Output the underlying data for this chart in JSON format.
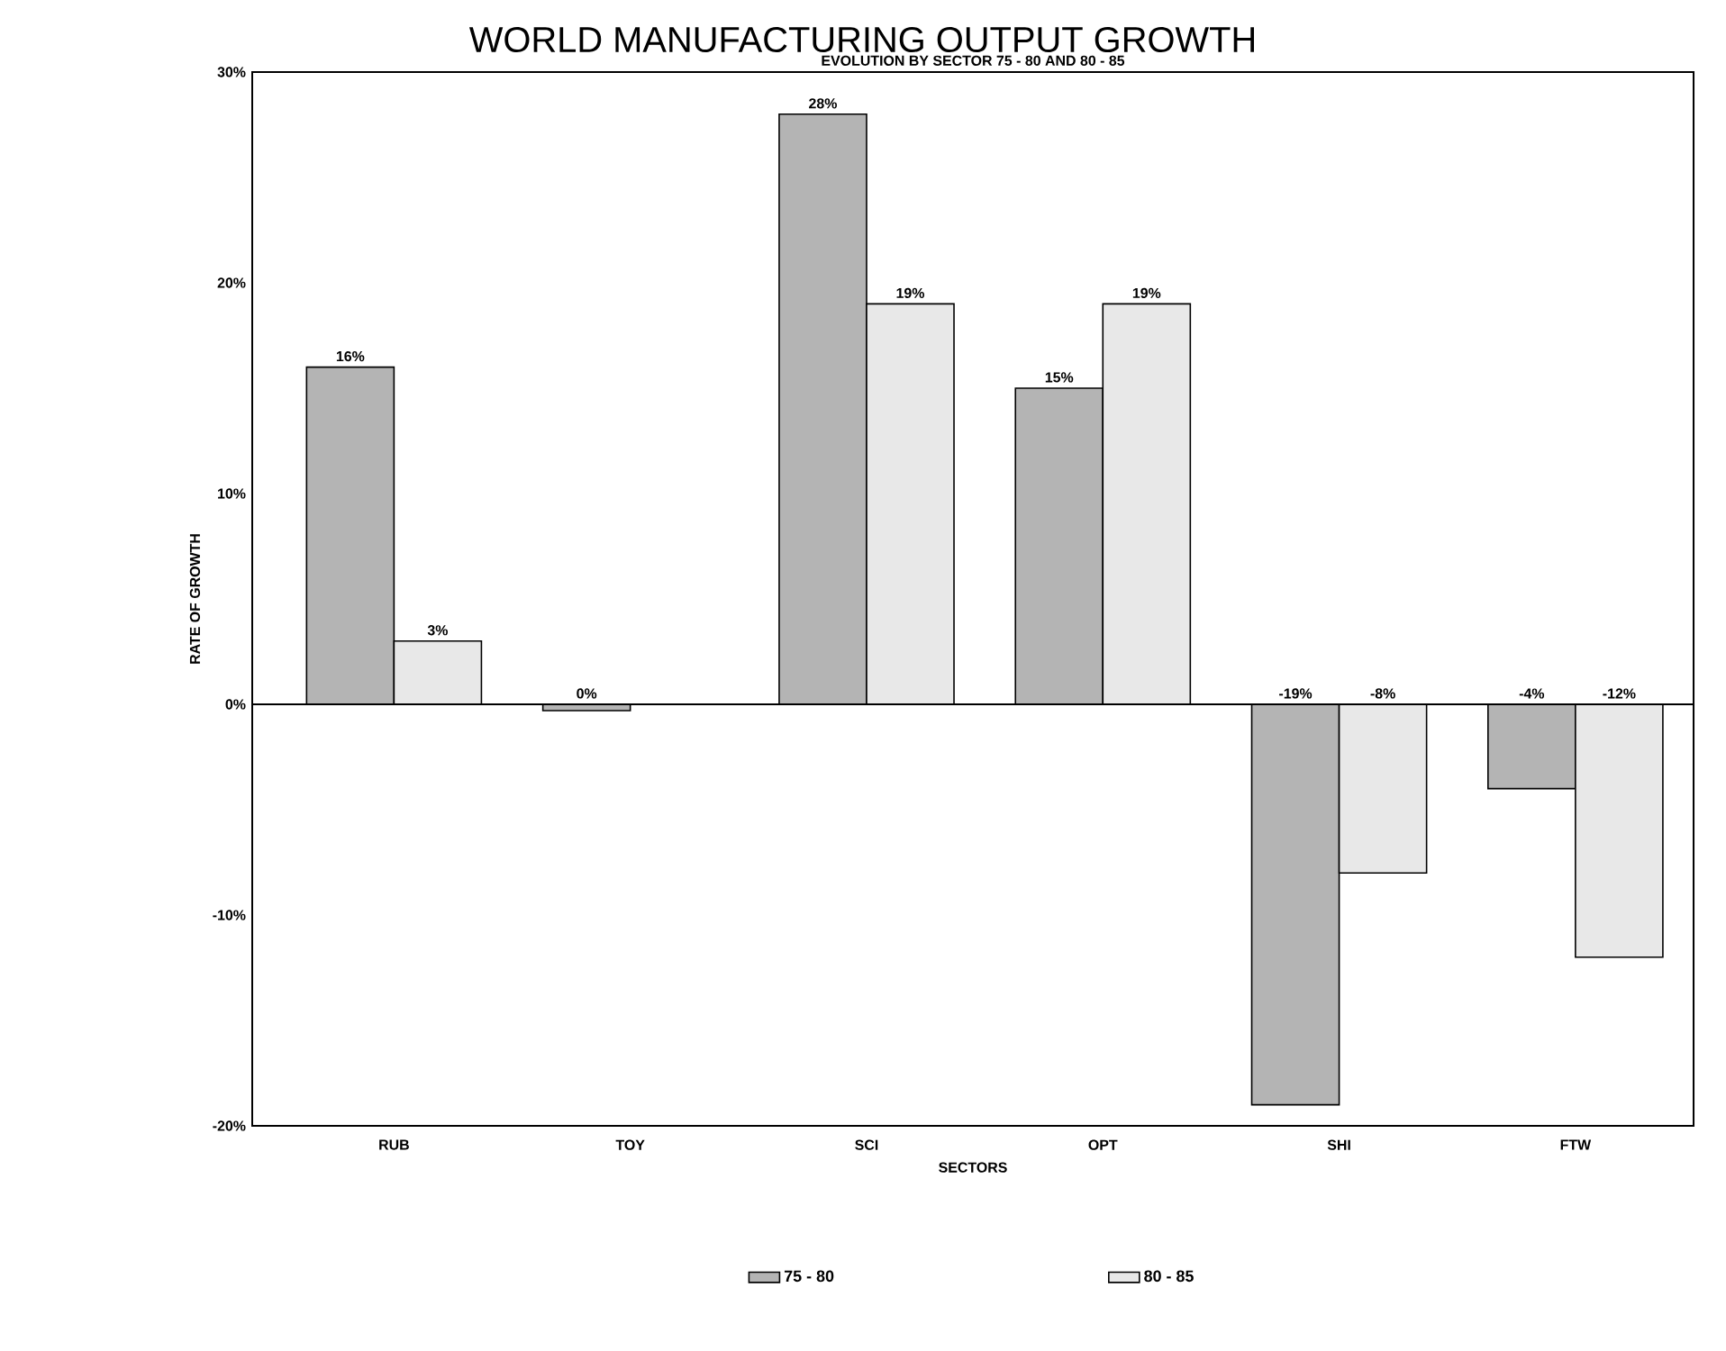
{
  "chart_data": {
    "type": "bar",
    "title": "WORLD MANUFACTURING OUTPUT GROWTH",
    "subtitle": "EVOLUTION BY SECTOR 75 - 80 AND 80 - 85",
    "xlabel": "SECTORS",
    "ylabel": "RATE OF GROWTH",
    "categories": [
      "RUB",
      "TOY",
      "SCI",
      "OPT",
      "SHI",
      "FTW"
    ],
    "series": [
      {
        "name": "75 - 80",
        "color": "#b4b4b4",
        "values": [
          16,
          -0.3,
          28,
          15,
          -19,
          -4
        ],
        "value_labels": [
          "16%",
          "0%",
          "28%",
          "15%",
          "-19%",
          "-4%"
        ]
      },
      {
        "name": "80 - 85",
        "color": "#e8e8e8",
        "values": [
          3,
          null,
          19,
          19,
          -8,
          -12
        ],
        "value_labels": [
          "3%",
          null,
          "19%",
          "19%",
          "-8%",
          "-12%"
        ]
      }
    ],
    "ylim": [
      -20,
      30
    ],
    "yticks": [
      {
        "value": -20,
        "label": "-20%"
      },
      {
        "value": -10,
        "label": "-10%"
      },
      {
        "value": 0,
        "label": "0%"
      },
      {
        "value": 10,
        "label": "10%"
      },
      {
        "value": 20,
        "label": "20%"
      },
      {
        "value": 30,
        "label": "30%"
      }
    ],
    "ref_lines": [
      {
        "axis": "y",
        "value": 0
      }
    ],
    "legend": "bottom",
    "grid": false
  }
}
